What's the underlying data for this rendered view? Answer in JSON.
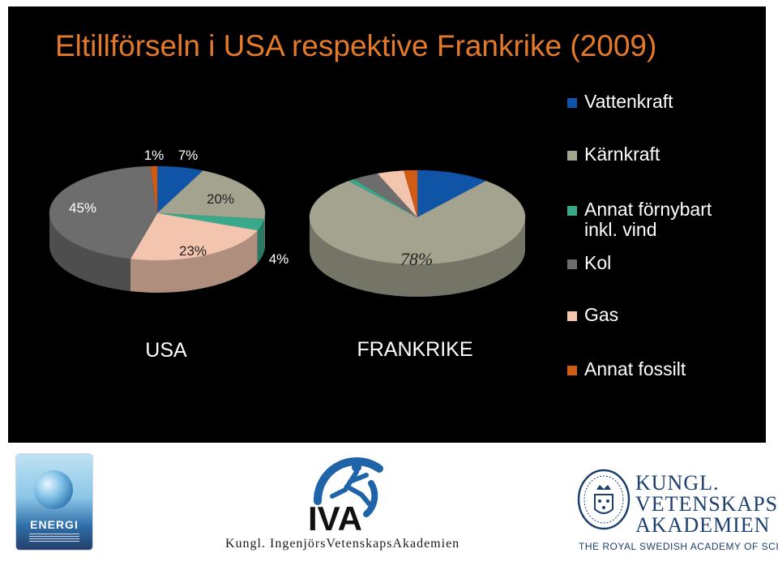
{
  "title": "Eltillförseln i USA respektive Frankrike (2009)",
  "legend": [
    {
      "label": "Vattenkraft",
      "color": "#1054a8"
    },
    {
      "label": "Kärnkraft",
      "color": "#a3a38f"
    },
    {
      "label": "Annat förnybart inkl. vind",
      "color": "#3aa88a"
    },
    {
      "label": "Kol",
      "color": "#6d6d6d"
    },
    {
      "label": "Gas",
      "color": "#f4c5ae"
    },
    {
      "label": "Annat fossilt",
      "color": "#cf5b14"
    }
  ],
  "chart_data": [
    {
      "type": "pie",
      "title": "USA",
      "categories": [
        "Vattenkraft",
        "Kärnkraft",
        "Annat förnybart inkl. vind",
        "Kol",
        "Gas",
        "Annat fossilt"
      ],
      "values": [
        7,
        20,
        4,
        45,
        23,
        1
      ],
      "value_labels": [
        "7%",
        "20%",
        "4%",
        "45%",
        "23%",
        "1%"
      ]
    },
    {
      "type": "pie",
      "title": "FRANKRIKE",
      "categories": [
        "Vattenkraft",
        "Kärnkraft",
        "Annat förnybart inkl. vind",
        "Kol",
        "Gas",
        "Annat fossilt"
      ],
      "values": [
        11,
        78,
        1,
        4,
        4,
        2
      ],
      "value_labels": [
        "",
        "78%",
        "",
        "",
        "",
        ""
      ]
    }
  ],
  "footer": {
    "energi_badge_text": "ENERGI",
    "iva_acronym": "IVA",
    "iva_full_name": "Kungl. IngenjörsVetenskapsAkademien",
    "kva_line1": "KUNGL.",
    "kva_line2": "VETENSKAPS-",
    "kva_line3": "AKADEMIEN",
    "kva_english": "THE ROYAL SWEDISH ACADEMY OF SCIENCES"
  }
}
